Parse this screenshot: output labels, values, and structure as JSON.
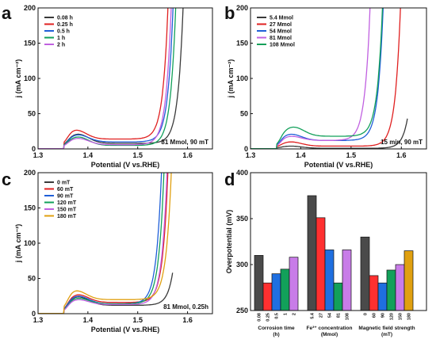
{
  "panels": [
    {
      "id": "a",
      "letter": "a"
    },
    {
      "id": "b",
      "letter": "b"
    },
    {
      "id": "c",
      "letter": "c"
    },
    {
      "id": "d",
      "letter": "d"
    }
  ],
  "chart_data": [
    {
      "panel": "a",
      "type": "line",
      "xlabel": "Potential (V vs.RHE)",
      "ylabel": "j (mA cm⁻²)",
      "xlim": [
        1.3,
        1.65
      ],
      "ylim": [
        0,
        200
      ],
      "xticks": [
        "1.3",
        "1.4",
        "1.5",
        "1.6"
      ],
      "yticks": [
        "0",
        "50",
        "100",
        "150",
        "200"
      ],
      "annotation": "81 Mmol, 90 mT",
      "legend_position": "top-left",
      "series": [
        {
          "name": "0.08 h",
          "color": "#3a3a3a",
          "onset": 1.548,
          "peak_x": 1.38,
          "peak_y": 21,
          "base": 8
        },
        {
          "name": "0.25 h",
          "color": "#e02020",
          "onset": 1.518,
          "peak_x": 1.375,
          "peak_y": 27,
          "base": 14
        },
        {
          "name": "0.5 h",
          "color": "#1f5fd8",
          "onset": 1.528,
          "peak_x": 1.38,
          "peak_y": 20,
          "base": 10
        },
        {
          "name": "1 h",
          "color": "#12a05a",
          "onset": 1.533,
          "peak_x": 1.38,
          "peak_y": 17,
          "base": 5
        },
        {
          "name": "2 h",
          "color": "#c060e0",
          "onset": 1.524,
          "peak_x": 1.38,
          "peak_y": 15,
          "base": 6
        }
      ]
    },
    {
      "panel": "b",
      "type": "line",
      "xlabel": "Potential (V vs.RHE)",
      "ylabel": "j (mA cm⁻²)",
      "xlim": [
        1.3,
        1.65
      ],
      "ylim": [
        0,
        200
      ],
      "xticks": [
        "1.3",
        "1.4",
        "1.5",
        "1.6"
      ],
      "yticks": [
        "0",
        "50",
        "100",
        "150",
        "200"
      ],
      "annotation": "15 min, 90 mT",
      "legend_position": "top-left",
      "series": [
        {
          "name": "5.4 Mmol",
          "color": "#3a3a3a",
          "onset": 1.585,
          "peak_x": 1.38,
          "peak_y": 4,
          "base": 1,
          "end_x": 1.612
        },
        {
          "name": "27 Mmol",
          "color": "#e02020",
          "onset": 1.555,
          "peak_x": 1.38,
          "peak_y": 10,
          "base": 4,
          "end_x": 1.6
        },
        {
          "name": "54 Mmol",
          "color": "#1f5fd8",
          "onset": 1.521,
          "peak_x": 1.38,
          "peak_y": 21,
          "base": 12
        },
        {
          "name": "81 Mmol",
          "color": "#c060e0",
          "onset": 1.495,
          "peak_x": 1.38,
          "peak_y": 18,
          "base": 12
        },
        {
          "name": "108 Mmol",
          "color": "#12a05a",
          "onset": 1.52,
          "peak_x": 1.385,
          "peak_y": 31,
          "base": 18
        }
      ]
    },
    {
      "panel": "c",
      "type": "line",
      "xlabel": "Potential (V vs.RHE)",
      "ylabel": "j (mA cm⁻²)",
      "xlim": [
        1.3,
        1.65
      ],
      "ylim": [
        0,
        200
      ],
      "xticks": [
        "1.3",
        "1.4",
        "1.5",
        "1.6"
      ],
      "yticks": [
        "0",
        "50",
        "100",
        "150",
        "200"
      ],
      "annotation": "81 Mmol, 0.25h",
      "legend_position": "top-left",
      "series": [
        {
          "name": "0 mT",
          "color": "#3a3a3a",
          "onset": 1.542,
          "peak_x": 1.38,
          "peak_y": 24,
          "base": 12,
          "end_x": 1.57
        },
        {
          "name": "60 mT",
          "color": "#e02020",
          "onset": 1.518,
          "peak_x": 1.38,
          "peak_y": 27,
          "base": 16
        },
        {
          "name": "90 mT",
          "color": "#1f5fd8",
          "onset": 1.505,
          "peak_x": 1.38,
          "peak_y": 25,
          "base": 14
        },
        {
          "name": "120 mT",
          "color": "#12a05a",
          "onset": 1.51,
          "peak_x": 1.38,
          "peak_y": 22,
          "base": 14
        },
        {
          "name": "150 mT",
          "color": "#c060e0",
          "onset": 1.516,
          "peak_x": 1.38,
          "peak_y": 20,
          "base": 13
        },
        {
          "name": "180 mT",
          "color": "#e0a010",
          "onset": 1.525,
          "peak_x": 1.375,
          "peak_y": 33,
          "base": 20
        }
      ]
    },
    {
      "panel": "d",
      "type": "bar",
      "ylabel": "Overpotential (mV)",
      "ylim": [
        250,
        400
      ],
      "yticks": [
        "250",
        "300",
        "350",
        "400"
      ],
      "grid": false,
      "groups": [
        {
          "label_lines": [
            "Corrosion time",
            "(h)"
          ],
          "categories": [
            "0.08",
            "0.25",
            "0.5",
            "1",
            "2"
          ],
          "values": [
            310,
            280,
            290,
            295,
            308
          ],
          "colors": [
            "#4a4a4a",
            "#ff3030",
            "#1f6fe0",
            "#12a05a",
            "#c87ce8"
          ]
        },
        {
          "label_lines": [
            "Fe³⁺ concentration",
            "(Mmol)"
          ],
          "categories": [
            "5.4",
            "27",
            "54",
            "81",
            "108"
          ],
          "values": [
            375,
            351,
            316,
            280,
            316
          ],
          "colors": [
            "#4a4a4a",
            "#ff3030",
            "#1f6fe0",
            "#12a05a",
            "#c87ce8"
          ]
        },
        {
          "label_lines": [
            "Magnetic field strength",
            "(mT)"
          ],
          "categories": [
            "0",
            "60",
            "90",
            "120",
            "150",
            "180"
          ],
          "values": [
            330,
            288,
            280,
            294,
            300,
            315
          ],
          "colors": [
            "#4a4a4a",
            "#ff3030",
            "#1f6fe0",
            "#12a05a",
            "#c87ce8",
            "#e0a010"
          ]
        }
      ]
    }
  ]
}
